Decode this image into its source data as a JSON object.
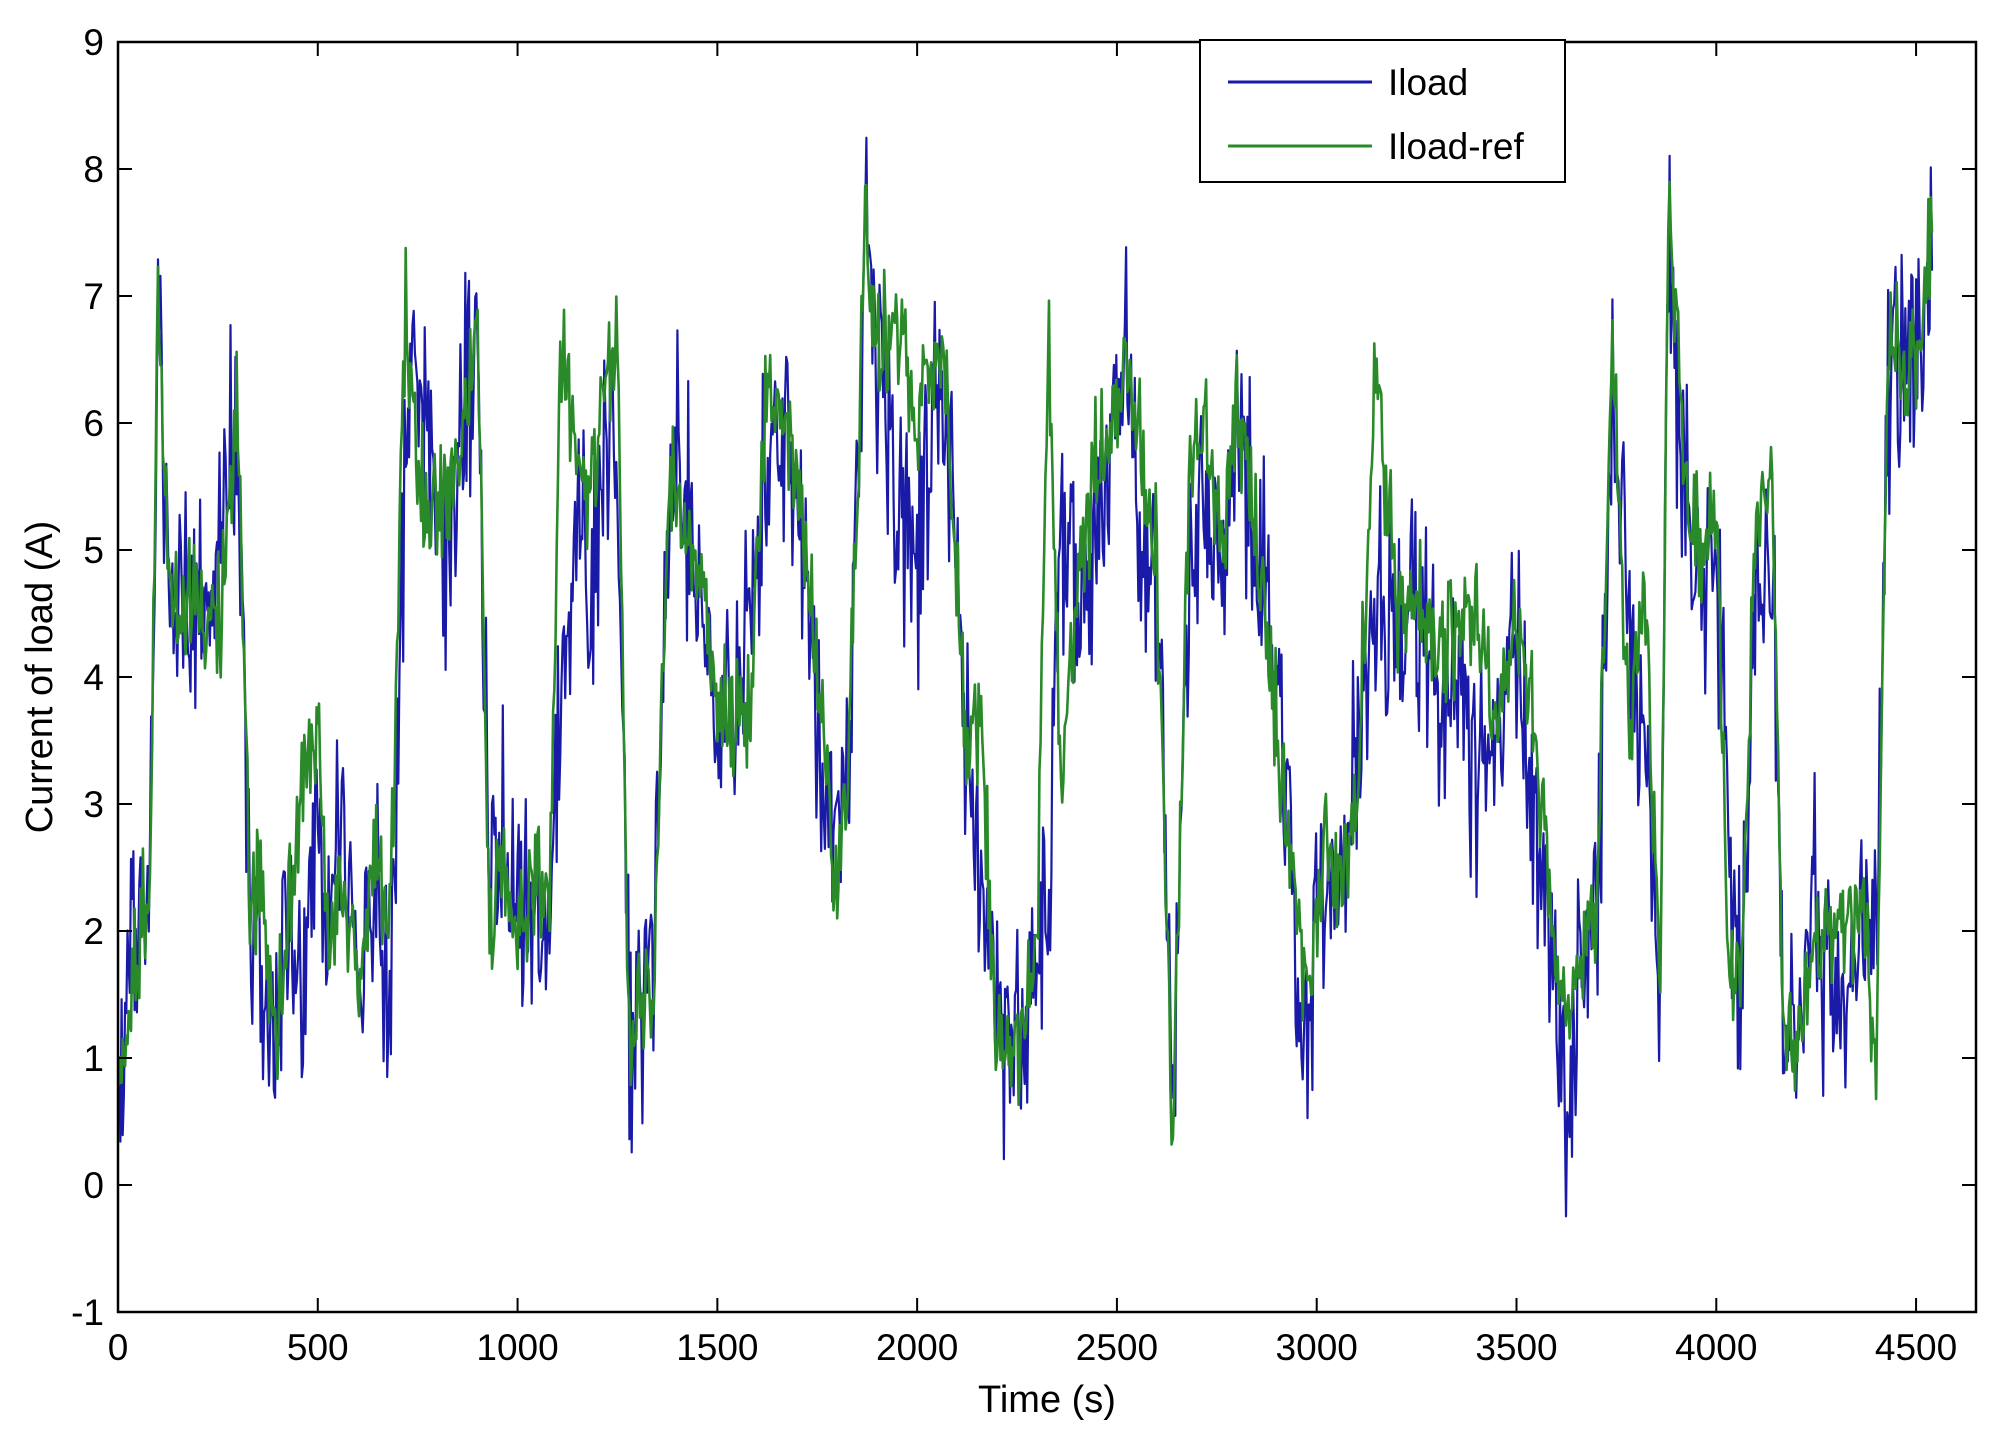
{
  "chart_data": {
    "type": "line",
    "title": "",
    "xlabel": "Time (s)",
    "ylabel": "Current of load (A)",
    "xlim": [
      0,
      4650
    ],
    "ylim": [
      -1,
      9
    ],
    "xticks": [
      0,
      500,
      1000,
      1500,
      2000,
      2500,
      3000,
      3500,
      4000,
      4500
    ],
    "yticks": [
      -1,
      0,
      1,
      2,
      3,
      4,
      5,
      6,
      7,
      8,
      9
    ],
    "grid": false,
    "legend": {
      "position": "top-right",
      "entries": [
        "Iload",
        "Iload-ref"
      ]
    },
    "colors": {
      "Iload": "#1a1aa8",
      "Iload-ref": "#2a8a2a"
    },
    "series": [
      {
        "name": "Iload",
        "color": "#1a1aa8",
        "x": [
          0,
          80,
          100,
          130,
          260,
          300,
          330,
          360,
          390,
          430,
          460,
          500,
          530,
          560,
          600,
          640,
          680,
          720,
          740,
          780,
          820,
          860,
          900,
          930,
          960,
          1000,
          1050,
          1080,
          1110,
          1150,
          1180,
          1220,
          1250,
          1280,
          1300,
          1340,
          1380,
          1400,
          1430,
          1460,
          1500,
          1540,
          1580,
          1620,
          1660,
          1700,
          1730,
          1760,
          1800,
          1830,
          1870,
          1900,
          1950,
          2000,
          2050,
          2080,
          2120,
          2160,
          2200,
          2220,
          2260,
          2300,
          2330,
          2360,
          2400,
          2440,
          2480,
          2520,
          2560,
          2600,
          2640,
          2680,
          2720,
          2760,
          2800,
          2850,
          2900,
          2950,
          2980,
          3020,
          3060,
          3100,
          3150,
          3200,
          3250,
          3300,
          3350,
          3400,
          3450,
          3500,
          3550,
          3600,
          3630,
          3660,
          3700,
          3740,
          3780,
          3820,
          3860,
          3880,
          3920,
          3960,
          4000,
          4030,
          4060,
          4100,
          4140,
          4170,
          4200,
          4240,
          4280,
          4320,
          4360,
          4400,
          4430,
          4470,
          4500,
          4540
        ],
        "y": [
          1.2,
          2.6,
          7.0,
          4.5,
          4.8,
          6.3,
          2.0,
          1.4,
          0.9,
          2.0,
          1.2,
          3.0,
          2.0,
          3.2,
          1.2,
          2.5,
          1.5,
          5.8,
          6.5,
          5.5,
          5.0,
          6.0,
          6.7,
          2.2,
          2.7,
          2.5,
          2.3,
          1.9,
          4.0,
          5.5,
          4.5,
          6.0,
          5.8,
          1.0,
          1.5,
          2.0,
          5.5,
          5.8,
          5.2,
          4.5,
          3.8,
          3.6,
          4.5,
          5.5,
          6.0,
          5.2,
          4.5,
          3.2,
          2.5,
          3.5,
          7.6,
          6.5,
          5.5,
          4.8,
          6.5,
          5.8,
          3.6,
          2.2,
          1.4,
          1.0,
          1.2,
          1.8,
          2.5,
          5.5,
          4.5,
          5.0,
          5.8,
          6.5,
          5.2,
          4.5,
          0.8,
          4.6,
          5.5,
          4.8,
          6.0,
          5.0,
          4.0,
          2.0,
          1.2,
          2.6,
          2.3,
          3.5,
          4.5,
          4.2,
          4.6,
          4.0,
          3.8,
          3.2,
          3.6,
          4.2,
          2.5,
          1.5,
          0.6,
          1.8,
          2.0,
          6.0,
          4.8,
          3.5,
          1.8,
          7.5,
          5.5,
          4.8,
          5.0,
          2.5,
          1.5,
          4.5,
          5.0,
          1.1,
          1.2,
          2.2,
          1.5,
          1.4,
          1.8,
          2.2,
          6.2,
          6.6,
          6.2,
          7.2
        ]
      },
      {
        "name": "Iload-ref",
        "color": "#2a8a2a",
        "x": [
          0,
          80,
          100,
          130,
          260,
          300,
          330,
          360,
          390,
          430,
          460,
          500,
          530,
          560,
          600,
          640,
          680,
          720,
          740,
          780,
          820,
          860,
          900,
          930,
          960,
          1000,
          1050,
          1080,
          1110,
          1150,
          1180,
          1220,
          1250,
          1280,
          1300,
          1340,
          1380,
          1400,
          1430,
          1460,
          1500,
          1540,
          1580,
          1620,
          1660,
          1700,
          1730,
          1760,
          1800,
          1830,
          1870,
          1900,
          1950,
          2000,
          2050,
          2080,
          2120,
          2160,
          2200,
          2220,
          2260,
          2300,
          2330,
          2360,
          2400,
          2440,
          2480,
          2520,
          2560,
          2600,
          2640,
          2680,
          2720,
          2760,
          2800,
          2850,
          2900,
          2950,
          2980,
          3020,
          3060,
          3100,
          3150,
          3200,
          3250,
          3300,
          3350,
          3400,
          3450,
          3500,
          3550,
          3600,
          3630,
          3660,
          3700,
          3740,
          3780,
          3820,
          3860,
          3880,
          3920,
          3960,
          4000,
          4030,
          4060,
          4100,
          4140,
          4170,
          4200,
          4240,
          4280,
          4320,
          4360,
          4400,
          4430,
          4470,
          4500,
          4540
        ],
        "y": [
          1.0,
          2.4,
          7.0,
          4.6,
          4.6,
          6.2,
          2.2,
          2.4,
          1.1,
          2.2,
          3.4,
          3.5,
          1.8,
          2.6,
          1.5,
          2.6,
          2.0,
          7.0,
          6.0,
          5.2,
          5.5,
          5.8,
          6.7,
          2.0,
          2.5,
          2.2,
          2.4,
          2.2,
          6.7,
          5.5,
          5.5,
          6.4,
          6.7,
          1.1,
          1.5,
          1.6,
          5.6,
          5.4,
          5.0,
          4.7,
          3.8,
          3.6,
          3.6,
          6.2,
          6.1,
          5.5,
          4.8,
          3.5,
          2.2,
          3.5,
          7.6,
          6.5,
          6.9,
          6.0,
          6.7,
          6.0,
          3.6,
          3.6,
          1.1,
          1.1,
          1.1,
          2.0,
          6.7,
          3.2,
          4.6,
          5.6,
          5.9,
          6.5,
          5.7,
          4.9,
          0.4,
          5.5,
          6.0,
          5.1,
          6.2,
          5.0,
          3.6,
          2.1,
          1.6,
          2.7,
          2.3,
          3.0,
          6.5,
          4.5,
          4.6,
          4.2,
          4.3,
          4.6,
          3.4,
          4.5,
          3.5,
          1.7,
          1.5,
          1.7,
          2.0,
          6.7,
          3.6,
          4.8,
          1.8,
          7.7,
          5.6,
          5.0,
          5.2,
          1.8,
          1.6,
          5.2,
          5.5,
          1.1,
          1.1,
          1.9,
          1.9,
          2.0,
          2.3,
          1.0,
          6.6,
          6.5,
          6.5,
          7.5
        ]
      }
    ]
  }
}
